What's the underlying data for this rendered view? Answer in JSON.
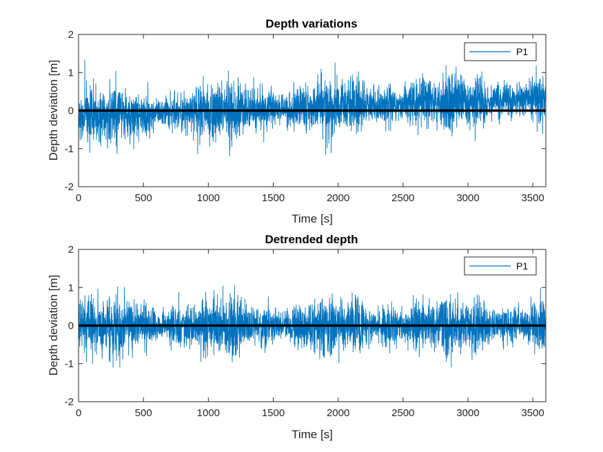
{
  "figure": {
    "background": "#ffffff",
    "series_color": "#0072BD",
    "zero_line_color": "#000000"
  },
  "chart_data": [
    {
      "type": "line",
      "title": "Depth variations",
      "xlabel": "Time [s]",
      "ylabel": "Depth deviation [m]",
      "xlim": [
        0,
        3600
      ],
      "ylim": [
        -2,
        2
      ],
      "x_ticks": [
        0,
        500,
        1000,
        1500,
        2000,
        2500,
        3000,
        3500
      ],
      "y_ticks": [
        -2,
        -1,
        0,
        1,
        2
      ],
      "grid": false,
      "legend": {
        "location": "top-right",
        "entries": [
          "P1"
        ]
      },
      "series": [
        {
          "name": "P1",
          "description": "noisy signal sampled every ~1 s; envelope approx ±1.1 m, mean drifting from about -0.15 m at t=0 to about +0.3 m at t=3600",
          "x_start": 0,
          "x_end": 3600,
          "mean_start": -0.15,
          "mean_end": 0.3,
          "peak_max": 1.35,
          "peak_min": -1.25
        }
      ],
      "reference_line": {
        "y": 0,
        "color": "#000000"
      }
    },
    {
      "type": "line",
      "title": "Detrended depth",
      "xlabel": "Time [s]",
      "ylabel": "Depth deviation [m]",
      "xlim": [
        0,
        3600
      ],
      "ylim": [
        -2,
        2
      ],
      "x_ticks": [
        0,
        500,
        1000,
        1500,
        2000,
        2500,
        3000,
        3500
      ],
      "y_ticks": [
        -2,
        -1,
        0,
        1,
        2
      ],
      "grid": false,
      "legend": {
        "location": "top-right",
        "entries": [
          "P1"
        ]
      },
      "series": [
        {
          "name": "P1",
          "description": "same signal with linear trend removed; centered on 0 m, envelope approx ±1.1 m",
          "x_start": 0,
          "x_end": 3600,
          "mean_start": 0.0,
          "mean_end": 0.0,
          "peak_max": 1.45,
          "peak_min": -1.1
        }
      ],
      "reference_line": {
        "y": 0,
        "color": "#000000"
      }
    }
  ]
}
